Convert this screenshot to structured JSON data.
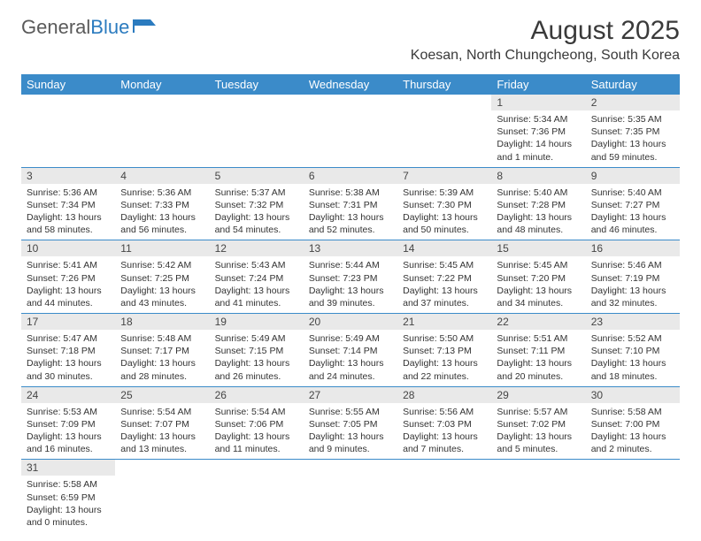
{
  "logo": {
    "text_a": "General",
    "text_b": "Blue"
  },
  "title": "August 2025",
  "location": "Koesan, North Chungcheong, South Korea",
  "colors": {
    "header_bg": "#3b8bc9",
    "header_fg": "#ffffff",
    "daynum_bg": "#e9e9e9",
    "daynum_fg": "#454545",
    "body_fg": "#333333",
    "rule": "#3b8bc9",
    "logo_gray": "#5a5a5a",
    "logo_blue": "#2b7bbf"
  },
  "weekdays": [
    "Sunday",
    "Monday",
    "Tuesday",
    "Wednesday",
    "Thursday",
    "Friday",
    "Saturday"
  ],
  "weeks": [
    [
      null,
      null,
      null,
      null,
      null,
      {
        "n": "1",
        "sr": "5:34 AM",
        "ss": "7:36 PM",
        "dl": "14 hours and 1 minute."
      },
      {
        "n": "2",
        "sr": "5:35 AM",
        "ss": "7:35 PM",
        "dl": "13 hours and 59 minutes."
      }
    ],
    [
      {
        "n": "3",
        "sr": "5:36 AM",
        "ss": "7:34 PM",
        "dl": "13 hours and 58 minutes."
      },
      {
        "n": "4",
        "sr": "5:36 AM",
        "ss": "7:33 PM",
        "dl": "13 hours and 56 minutes."
      },
      {
        "n": "5",
        "sr": "5:37 AM",
        "ss": "7:32 PM",
        "dl": "13 hours and 54 minutes."
      },
      {
        "n": "6",
        "sr": "5:38 AM",
        "ss": "7:31 PM",
        "dl": "13 hours and 52 minutes."
      },
      {
        "n": "7",
        "sr": "5:39 AM",
        "ss": "7:30 PM",
        "dl": "13 hours and 50 minutes."
      },
      {
        "n": "8",
        "sr": "5:40 AM",
        "ss": "7:28 PM",
        "dl": "13 hours and 48 minutes."
      },
      {
        "n": "9",
        "sr": "5:40 AM",
        "ss": "7:27 PM",
        "dl": "13 hours and 46 minutes."
      }
    ],
    [
      {
        "n": "10",
        "sr": "5:41 AM",
        "ss": "7:26 PM",
        "dl": "13 hours and 44 minutes."
      },
      {
        "n": "11",
        "sr": "5:42 AM",
        "ss": "7:25 PM",
        "dl": "13 hours and 43 minutes."
      },
      {
        "n": "12",
        "sr": "5:43 AM",
        "ss": "7:24 PM",
        "dl": "13 hours and 41 minutes."
      },
      {
        "n": "13",
        "sr": "5:44 AM",
        "ss": "7:23 PM",
        "dl": "13 hours and 39 minutes."
      },
      {
        "n": "14",
        "sr": "5:45 AM",
        "ss": "7:22 PM",
        "dl": "13 hours and 37 minutes."
      },
      {
        "n": "15",
        "sr": "5:45 AM",
        "ss": "7:20 PM",
        "dl": "13 hours and 34 minutes."
      },
      {
        "n": "16",
        "sr": "5:46 AM",
        "ss": "7:19 PM",
        "dl": "13 hours and 32 minutes."
      }
    ],
    [
      {
        "n": "17",
        "sr": "5:47 AM",
        "ss": "7:18 PM",
        "dl": "13 hours and 30 minutes."
      },
      {
        "n": "18",
        "sr": "5:48 AM",
        "ss": "7:17 PM",
        "dl": "13 hours and 28 minutes."
      },
      {
        "n": "19",
        "sr": "5:49 AM",
        "ss": "7:15 PM",
        "dl": "13 hours and 26 minutes."
      },
      {
        "n": "20",
        "sr": "5:49 AM",
        "ss": "7:14 PM",
        "dl": "13 hours and 24 minutes."
      },
      {
        "n": "21",
        "sr": "5:50 AM",
        "ss": "7:13 PM",
        "dl": "13 hours and 22 minutes."
      },
      {
        "n": "22",
        "sr": "5:51 AM",
        "ss": "7:11 PM",
        "dl": "13 hours and 20 minutes."
      },
      {
        "n": "23",
        "sr": "5:52 AM",
        "ss": "7:10 PM",
        "dl": "13 hours and 18 minutes."
      }
    ],
    [
      {
        "n": "24",
        "sr": "5:53 AM",
        "ss": "7:09 PM",
        "dl": "13 hours and 16 minutes."
      },
      {
        "n": "25",
        "sr": "5:54 AM",
        "ss": "7:07 PM",
        "dl": "13 hours and 13 minutes."
      },
      {
        "n": "26",
        "sr": "5:54 AM",
        "ss": "7:06 PM",
        "dl": "13 hours and 11 minutes."
      },
      {
        "n": "27",
        "sr": "5:55 AM",
        "ss": "7:05 PM",
        "dl": "13 hours and 9 minutes."
      },
      {
        "n": "28",
        "sr": "5:56 AM",
        "ss": "7:03 PM",
        "dl": "13 hours and 7 minutes."
      },
      {
        "n": "29",
        "sr": "5:57 AM",
        "ss": "7:02 PM",
        "dl": "13 hours and 5 minutes."
      },
      {
        "n": "30",
        "sr": "5:58 AM",
        "ss": "7:00 PM",
        "dl": "13 hours and 2 minutes."
      }
    ],
    [
      {
        "n": "31",
        "sr": "5:58 AM",
        "ss": "6:59 PM",
        "dl": "13 hours and 0 minutes."
      },
      null,
      null,
      null,
      null,
      null,
      null
    ]
  ],
  "labels": {
    "sunrise": "Sunrise:",
    "sunset": "Sunset:",
    "daylight": "Daylight:"
  }
}
